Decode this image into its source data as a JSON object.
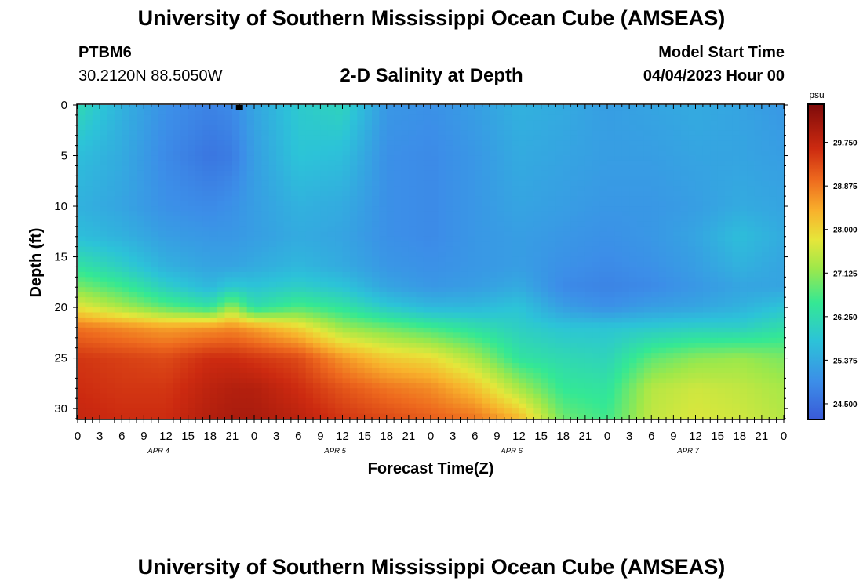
{
  "header": {
    "title": "University of Southern Mississippi Ocean Cube (AMSEAS)",
    "station_id": "PTBM6",
    "station_coords": "30.2120N  88.5050W",
    "chart_title": "2-D Salinity at Depth",
    "start_label": "Model Start Time",
    "start_value": "04/04/2023 Hour 00"
  },
  "footer": {
    "title": "University of Southern Mississippi Ocean Cube (AMSEAS)"
  },
  "chart_data": {
    "type": "heatmap",
    "title": "2-D Salinity at Depth",
    "xlabel": "Forecast Time(Z)",
    "ylabel": "Depth (ft)",
    "x_tick_labels": [
      "0",
      "3",
      "6",
      "9",
      "12",
      "15",
      "18",
      "21",
      "0",
      "3",
      "6",
      "9",
      "12",
      "15",
      "18",
      "21",
      "0",
      "3",
      "6",
      "9",
      "12",
      "15",
      "18",
      "21",
      "0",
      "3",
      "6",
      "9",
      "12",
      "15",
      "18",
      "21",
      "0"
    ],
    "date_labels": [
      "APR 4",
      "APR 5",
      "APR 6",
      "APR 7"
    ],
    "y_ticks": [
      0,
      5,
      10,
      15,
      20,
      25,
      30
    ],
    "ylim": [
      0,
      31
    ],
    "xlim_hours": [
      0,
      96
    ],
    "colorbar": {
      "unit": "psu",
      "ticks": [
        "29.750",
        "28.875",
        "28.000",
        "27.125",
        "26.250",
        "25.375",
        "24.500"
      ],
      "range": [
        24.2,
        30.5
      ]
    },
    "field": {
      "hours": [
        0,
        6,
        12,
        18,
        21,
        24,
        30,
        36,
        42,
        48,
        54,
        60,
        66,
        72,
        78,
        84,
        90,
        96
      ],
      "depths_ft": [
        0,
        5,
        10,
        13,
        16,
        18,
        20,
        22,
        25,
        28,
        31
      ],
      "salinity_psu": [
        [
          26.2,
          25.5,
          25.0,
          24.8,
          24.9,
          25.3,
          25.9,
          26.1,
          25.1,
          25.0,
          25.2,
          25.5,
          25.4,
          25.2,
          25.3,
          25.4,
          25.3,
          25.1
        ],
        [
          25.7,
          25.4,
          24.9,
          24.6,
          24.7,
          25.2,
          25.8,
          25.7,
          25.0,
          24.9,
          25.1,
          25.4,
          25.3,
          25.2,
          25.2,
          25.3,
          25.3,
          25.2
        ],
        [
          25.5,
          25.3,
          25.0,
          24.9,
          25.0,
          25.2,
          25.5,
          25.4,
          25.0,
          24.9,
          25.1,
          25.3,
          25.2,
          25.1,
          25.1,
          25.2,
          25.4,
          25.3
        ],
        [
          25.7,
          25.5,
          25.2,
          25.1,
          25.1,
          25.2,
          25.4,
          25.3,
          25.0,
          24.9,
          25.1,
          25.2,
          25.1,
          25.0,
          25.1,
          25.3,
          25.7,
          25.4
        ],
        [
          26.4,
          26.0,
          25.5,
          25.3,
          25.3,
          25.4,
          25.6,
          25.4,
          25.1,
          25.0,
          25.1,
          25.2,
          25.0,
          24.9,
          25.0,
          25.2,
          25.5,
          25.3
        ],
        [
          27.0,
          26.6,
          26.0,
          25.6,
          25.9,
          25.8,
          26.0,
          25.8,
          25.3,
          25.1,
          25.2,
          25.4,
          24.9,
          24.8,
          24.9,
          25.1,
          25.3,
          25.3
        ],
        [
          27.8,
          27.3,
          26.8,
          26.4,
          27.2,
          26.3,
          26.7,
          26.4,
          25.9,
          25.6,
          25.6,
          25.8,
          25.2,
          25.0,
          25.2,
          25.3,
          25.5,
          25.8
        ],
        [
          28.9,
          28.7,
          28.5,
          28.6,
          28.7,
          28.5,
          28.0,
          27.2,
          26.9,
          26.6,
          26.3,
          26.0,
          25.8,
          25.8,
          25.9,
          26.0,
          26.0,
          26.3
        ],
        [
          29.5,
          29.4,
          29.3,
          29.6,
          29.6,
          29.5,
          29.3,
          28.6,
          28.1,
          27.9,
          27.3,
          26.4,
          26.2,
          26.1,
          26.8,
          27.1,
          27.2,
          27.0
        ],
        [
          29.6,
          29.5,
          29.5,
          29.8,
          29.9,
          29.9,
          29.6,
          29.2,
          28.9,
          28.7,
          28.2,
          27.3,
          26.5,
          26.4,
          27.4,
          27.6,
          27.5,
          27.3
        ],
        [
          29.7,
          29.6,
          29.6,
          29.9,
          30.0,
          30.0,
          29.8,
          29.5,
          29.3,
          29.1,
          28.9,
          28.3,
          26.9,
          26.6,
          27.5,
          27.7,
          27.6,
          27.4
        ]
      ]
    },
    "marker": {
      "hour": 22
    }
  }
}
